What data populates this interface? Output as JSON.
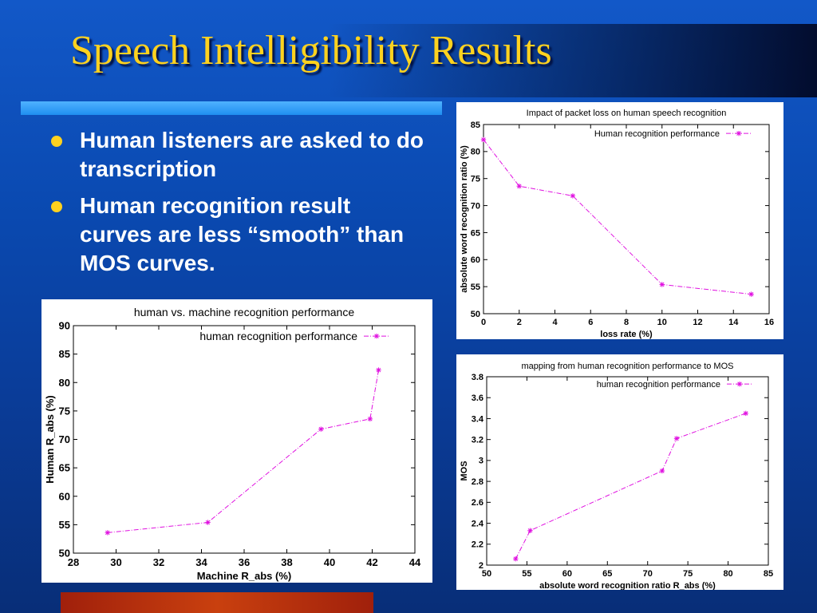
{
  "slide": {
    "title": "Speech Intelligibility Results",
    "bullets": [
      "Human listeners are asked to do transcription",
      "Human recognition result curves are less “smooth” than MOS curves."
    ]
  },
  "colors": {
    "title": "#ffd21f",
    "series": "#e010e0",
    "bullet": "#ffd21f"
  },
  "chart_data": [
    {
      "type": "line",
      "title": "Impact of packet loss on human speech recognition",
      "xlabel": "loss rate (%)",
      "ylabel": "absolute word recognition ratio (%)",
      "xlim": [
        0,
        16
      ],
      "ylim": [
        50,
        85
      ],
      "xticks": [
        0,
        2,
        4,
        6,
        8,
        10,
        12,
        14,
        16
      ],
      "yticks": [
        50,
        55,
        60,
        65,
        70,
        75,
        80,
        85
      ],
      "legend_position": "top-right",
      "series": [
        {
          "name": "Human recognition performance",
          "x": [
            0,
            2,
            5,
            10,
            15
          ],
          "y": [
            82.2,
            73.6,
            71.8,
            55.4,
            53.6
          ]
        }
      ]
    },
    {
      "type": "line",
      "title": "human vs. machine recognition performance",
      "xlabel": "Machine R_abs (%)",
      "ylabel": "Human R_abs (%)",
      "xlim": [
        28,
        44
      ],
      "ylim": [
        50,
        90
      ],
      "xticks": [
        28,
        30,
        32,
        34,
        36,
        38,
        40,
        42,
        44
      ],
      "yticks": [
        50,
        55,
        60,
        65,
        70,
        75,
        80,
        85,
        90
      ],
      "legend_position": "top-right",
      "series": [
        {
          "name": "human recognition performance",
          "x": [
            29.6,
            34.3,
            39.6,
            41.9,
            42.3
          ],
          "y": [
            53.6,
            55.4,
            71.8,
            73.6,
            82.2
          ]
        }
      ]
    },
    {
      "type": "line",
      "title": "mapping from human recognition performance to MOS",
      "xlabel": "absolute word recognition ratio R_abs (%)",
      "ylabel": "MOS",
      "xlim": [
        50,
        85
      ],
      "ylim": [
        2,
        3.8
      ],
      "xticks": [
        50,
        55,
        60,
        65,
        70,
        75,
        80,
        85
      ],
      "yticks": [
        2,
        2.2,
        2.4,
        2.6,
        2.8,
        3,
        3.2,
        3.4,
        3.6,
        3.8
      ],
      "legend_position": "top-right",
      "series": [
        {
          "name": "human recognition performance",
          "x": [
            53.6,
            55.4,
            71.8,
            73.6,
            82.2
          ],
          "y": [
            2.06,
            2.33,
            2.9,
            3.21,
            3.45
          ]
        }
      ]
    }
  ]
}
